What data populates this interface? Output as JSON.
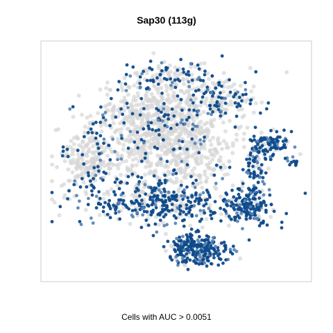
{
  "chart_data": {
    "type": "scatter",
    "title": "Sap30 (113g)",
    "caption": "Cells with AUC > 0.0051",
    "axes_visible": false,
    "grid": false,
    "legend": "none",
    "colors": {
      "high": "#0d4a8a",
      "mid": "#5b86b5",
      "low": "#d6d6d6",
      "frame": "#cccccc"
    },
    "xlim": [
      0,
      100
    ],
    "ylim": [
      0,
      100
    ],
    "clusters": [
      {
        "region": "top arc",
        "cx": 45,
        "cy": 88,
        "sx": 9,
        "sy": 4,
        "n": 120,
        "share_high": 0.55
      },
      {
        "region": "top-right lobe",
        "cx": 66,
        "cy": 78,
        "sx": 7,
        "sy": 6,
        "n": 150,
        "share_high": 0.5
      },
      {
        "region": "upper body",
        "cx": 42,
        "cy": 72,
        "sx": 12,
        "sy": 7,
        "n": 420,
        "share_high": 0.12
      },
      {
        "region": "central body",
        "cx": 45,
        "cy": 55,
        "sx": 14,
        "sy": 9,
        "n": 600,
        "share_high": 0.1
      },
      {
        "region": "left lobe",
        "cx": 15,
        "cy": 52,
        "sx": 6,
        "sy": 8,
        "n": 220,
        "share_high": 0.15
      },
      {
        "region": "lower band",
        "cx": 43,
        "cy": 32,
        "sx": 15,
        "sy": 5,
        "n": 420,
        "share_high": 0.7
      },
      {
        "region": "bottom lobe",
        "cx": 58,
        "cy": 11,
        "sx": 6,
        "sy": 3.5,
        "n": 260,
        "share_high": 0.9
      },
      {
        "region": "right cluster",
        "cx": 78,
        "cy": 30,
        "sx": 4,
        "sy": 4,
        "n": 160,
        "share_high": 0.85
      },
      {
        "region": "right arm",
        "cx": 80,
        "cy": 48,
        "sx": 2.5,
        "sy": 6,
        "n": 80,
        "share_high": 0.8
      },
      {
        "region": "far-right island",
        "cx": 87,
        "cy": 58,
        "sx": 4,
        "sy": 2.5,
        "n": 90,
        "share_high": 0.85
      },
      {
        "region": "far-right tip",
        "cx": 95,
        "cy": 50,
        "sx": 1.2,
        "sy": 1.2,
        "n": 12,
        "share_high": 1.0
      }
    ]
  }
}
